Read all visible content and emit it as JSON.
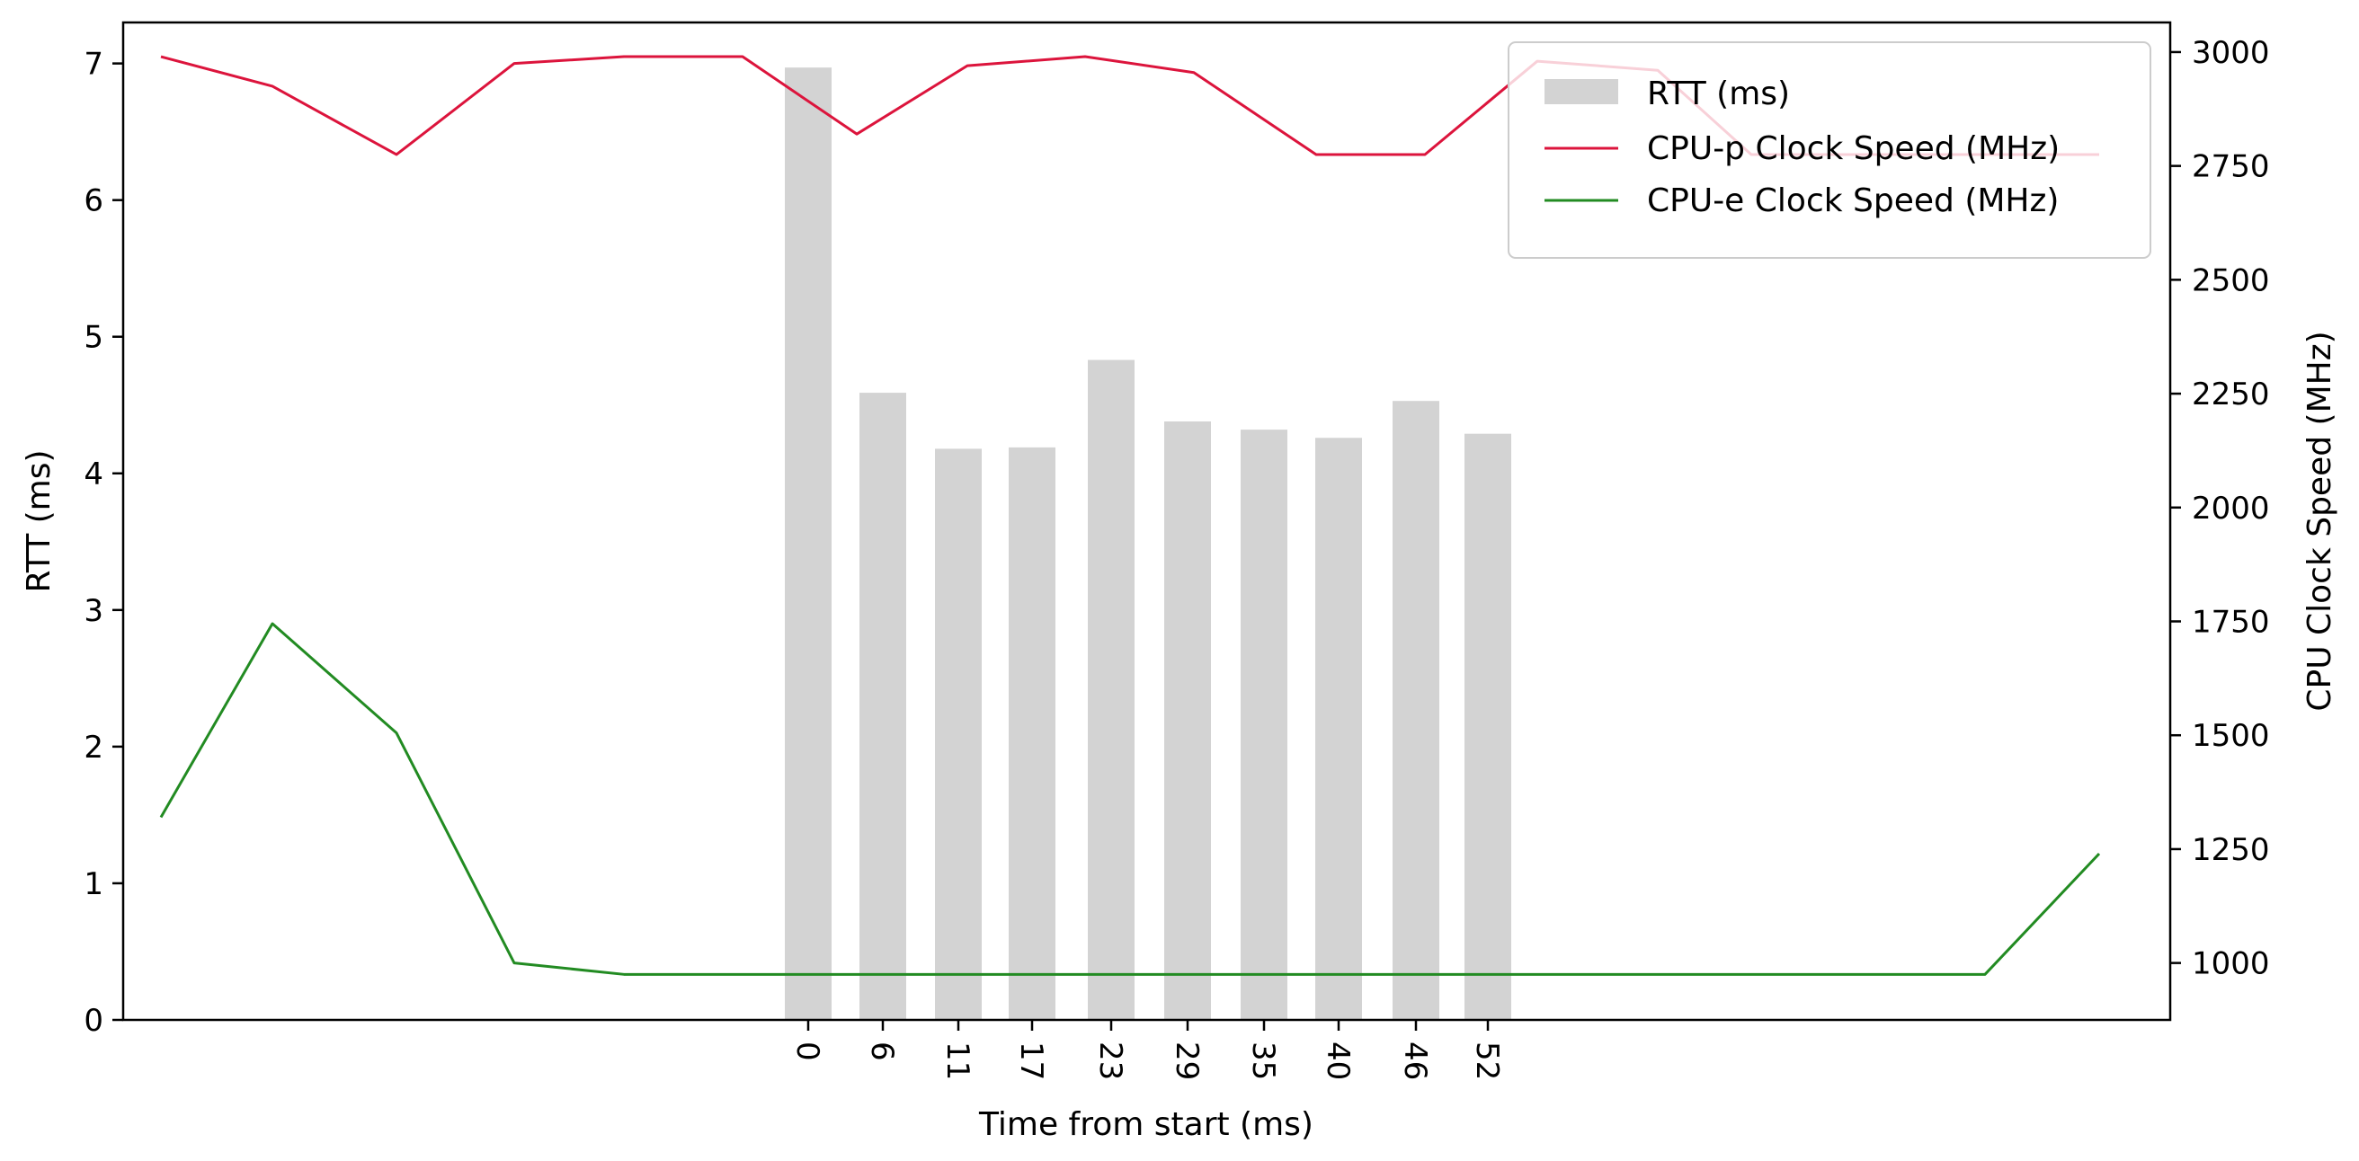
{
  "chart_data": {
    "type": "bar+line",
    "xlabel": "Time from start (ms)",
    "ylabel_left": "RTT (ms)",
    "ylabel_right": "CPU Clock Speed (MHz)",
    "ylim_left": [
      0,
      7.3
    ],
    "ylim_right": [
      875,
      3065
    ],
    "yticks_left": [
      0,
      1,
      2,
      3,
      4,
      5,
      6,
      7
    ],
    "yticks_right": [
      1000,
      1250,
      1500,
      1750,
      2000,
      2250,
      2500,
      2750,
      3000
    ],
    "x_tick_labels": [
      "0",
      "6",
      "11",
      "17",
      "23",
      "29",
      "35",
      "40",
      "46",
      "52"
    ],
    "legend_position": "top-right",
    "rtt": {
      "name": "RTT (ms)",
      "color": "#d3d3d3",
      "x": [
        0,
        6,
        11,
        17,
        23,
        29,
        35,
        40,
        46,
        52
      ],
      "values": [
        6.97,
        4.59,
        4.18,
        4.19,
        4.83,
        4.38,
        4.32,
        4.26,
        4.53,
        4.29
      ]
    },
    "cpu_p": {
      "name": "CPU-p Clock Speed (MHz)",
      "color": "#dc143c",
      "x": [
        -49,
        -40,
        -30,
        -21,
        -12,
        -5,
        3,
        11,
        21,
        30,
        39,
        48,
        57,
        66,
        75,
        84,
        92,
        101
      ],
      "values": [
        2990,
        2925,
        2775,
        2975,
        2990,
        2990,
        2820,
        2970,
        2990,
        2955,
        2775,
        2775,
        2980,
        2960,
        2775,
        2775,
        2775,
        2775
      ]
    },
    "cpu_e": {
      "name": "CPU-e Clock Speed (MHz)",
      "color": "#228b22",
      "x": [
        -49,
        -40,
        -30,
        -21,
        -12,
        -5,
        3,
        11,
        21,
        30,
        39,
        48,
        57,
        66,
        75,
        84,
        92,
        101
      ],
      "values": [
        1320,
        1745,
        1505,
        1000,
        975,
        975,
        975,
        975,
        975,
        975,
        975,
        975,
        975,
        975,
        975,
        975,
        975,
        1240
      ]
    }
  }
}
